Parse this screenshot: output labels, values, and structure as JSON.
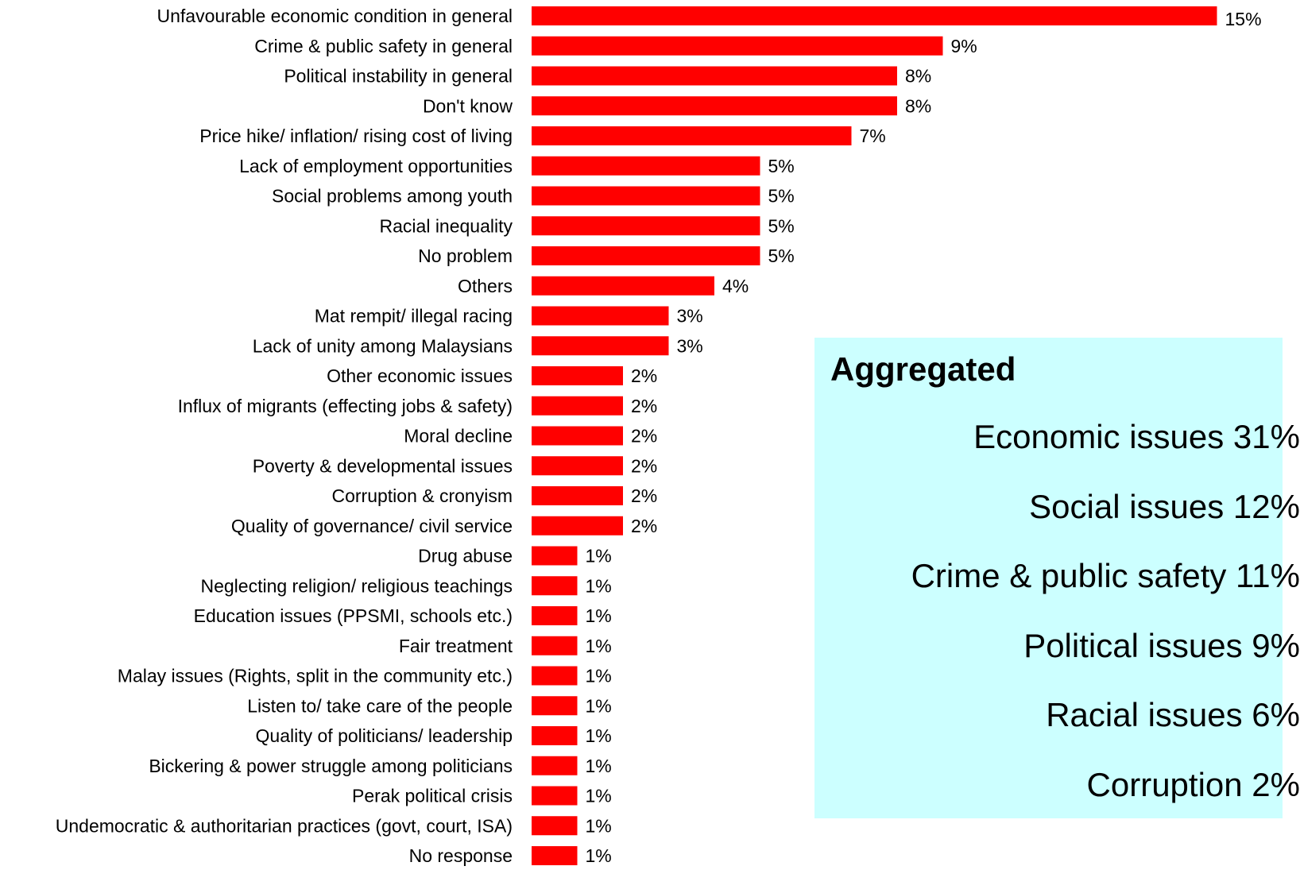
{
  "chart_data": {
    "type": "bar",
    "orientation": "horizontal",
    "categories": [
      "Unfavourable economic condition in general",
      "Crime & public safety in general",
      "Political instability in general",
      "Don't know",
      "Price hike/ inflation/ rising cost of living",
      "Lack of employment opportunities",
      "Social problems among youth",
      "Racial inequality",
      "No problem",
      "Others",
      "Mat rempit/ illegal racing",
      "Lack of unity among Malaysians",
      "Other economic issues",
      "Influx of migrants (effecting jobs & safety)",
      "Moral decline",
      "Poverty & developmental issues",
      "Corruption & cronyism",
      "Quality of governance/ civil service",
      "Drug abuse",
      "Neglecting religion/ religious teachings",
      "Education issues (PPSMI, schools etc.)",
      "Fair treatment",
      "Malay issues (Rights, split in the community etc.)",
      "Listen to/ take care of the people",
      "Quality of politicians/ leadership",
      "Bickering & power struggle among politicians",
      "Perak political crisis",
      "Undemocratic & authoritarian practices  (govt, court, ISA)",
      "No response"
    ],
    "values": [
      15,
      9,
      8,
      8,
      7,
      5,
      5,
      5,
      5,
      4,
      3,
      3,
      2,
      2,
      2,
      2,
      2,
      2,
      1,
      1,
      1,
      1,
      1,
      1,
      1,
      1,
      1,
      1,
      1
    ],
    "value_labels": [
      "15%",
      "9%",
      "8%",
      "8%",
      "7%",
      "5%",
      "5%",
      "5%",
      "5%",
      "4%",
      "3%",
      "3%",
      "2%",
      "2%",
      "2%",
      "2%",
      "2%",
      "2%",
      "1%",
      "1%",
      "1%",
      "1%",
      "1%",
      "1%",
      "1%",
      "1%",
      "1%",
      "1%",
      "1%"
    ],
    "bar_color": "#ff0000",
    "xlim": [
      0,
      15
    ],
    "grid": false
  },
  "aggregated": {
    "title": "Aggregated",
    "items": [
      "Economic issues 31%",
      "Social issues 12%",
      "Crime & public safety 11%",
      "Political issues 9%",
      "Racial issues 6%",
      "Corruption 2%"
    ],
    "background": "#ccffff"
  }
}
